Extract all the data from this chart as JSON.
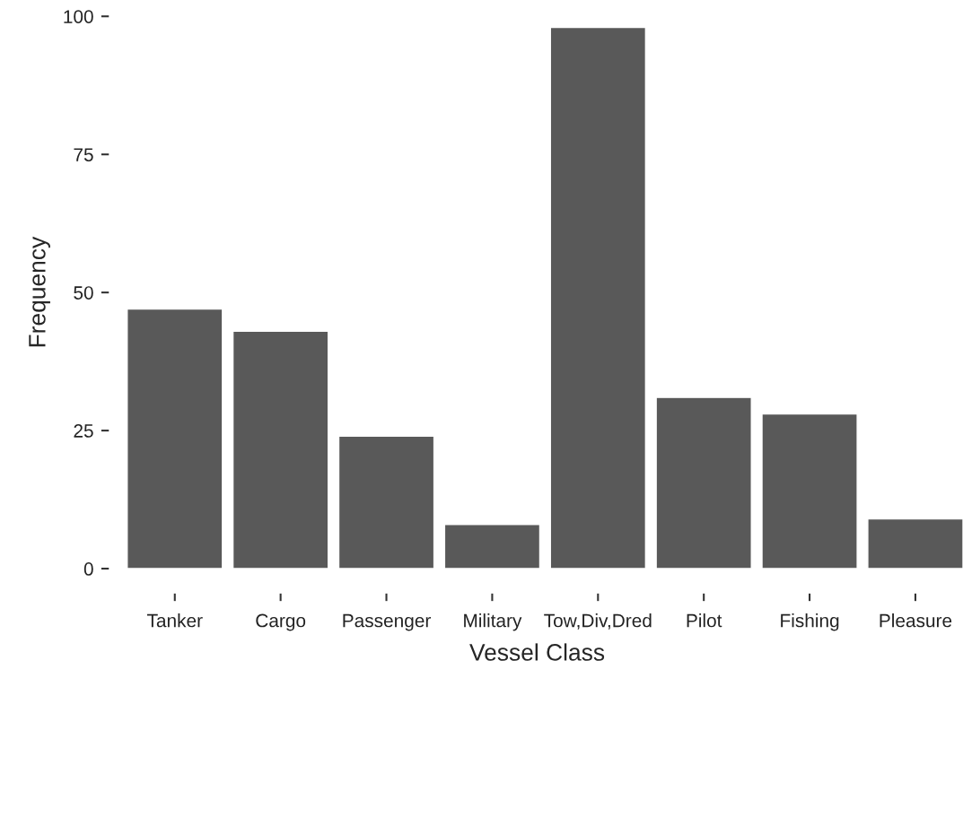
{
  "chart_data": {
    "type": "bar",
    "xlabel": "Vessel Class",
    "ylabel": "Frequency",
    "categories": [
      "Tanker",
      "Cargo",
      "Passenger",
      "Military",
      "Tow,Div,Dred",
      "Pilot",
      "Fishing",
      "Pleasure"
    ],
    "values": [
      47,
      43,
      24,
      8,
      98,
      31,
      28,
      9
    ],
    "color": "#595959",
    "ylim": [
      0,
      100
    ],
    "yticks": [
      0,
      25,
      50,
      75,
      100
    ],
    "grid": false,
    "legend": false
  }
}
